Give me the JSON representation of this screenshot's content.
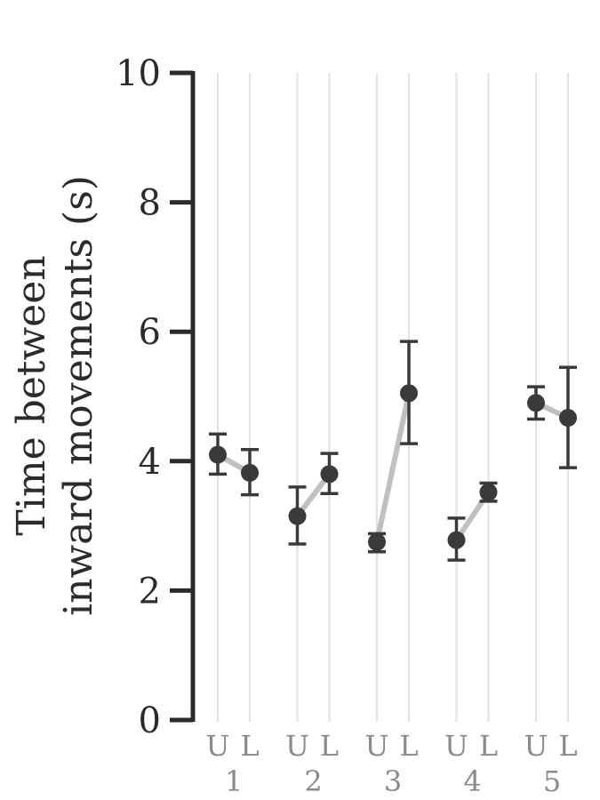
{
  "chart_data": {
    "type": "scatter",
    "ylabel_lines": [
      "Time between",
      "inward movements (s)"
    ],
    "ylim": [
      0,
      10
    ],
    "yticks": [
      "0",
      "2",
      "4",
      "6",
      "8",
      "10"
    ],
    "grid": "vertical lines at each condition",
    "groups": [
      {
        "label": "1",
        "points": [
          {
            "label": "U",
            "y": 4.1,
            "low": 3.8,
            "high": 4.42
          },
          {
            "label": "L",
            "y": 3.82,
            "low": 3.48,
            "high": 4.18
          }
        ]
      },
      {
        "label": "2",
        "points": [
          {
            "label": "U",
            "y": 3.15,
            "low": 2.72,
            "high": 3.6
          },
          {
            "label": "L",
            "y": 3.8,
            "low": 3.5,
            "high": 4.12
          }
        ]
      },
      {
        "label": "3",
        "points": [
          {
            "label": "U",
            "y": 2.75,
            "low": 2.6,
            "high": 2.88
          },
          {
            "label": "L",
            "y": 5.05,
            "low": 4.27,
            "high": 5.85
          }
        ]
      },
      {
        "label": "4",
        "points": [
          {
            "label": "U",
            "y": 2.78,
            "low": 2.47,
            "high": 3.12
          },
          {
            "label": "L",
            "y": 3.52,
            "low": 3.38,
            "high": 3.66
          }
        ]
      },
      {
        "label": "5",
        "points": [
          {
            "label": "U",
            "y": 4.9,
            "low": 4.65,
            "high": 5.15
          },
          {
            "label": "L",
            "y": 4.67,
            "low": 3.9,
            "high": 5.45
          }
        ]
      }
    ],
    "colors": {
      "axis": "#2b2b2b",
      "marker": "#3a3a3a",
      "connector": "#c0c0c0",
      "grid": "#e2e2e2",
      "xtick": "#8a8a8a"
    }
  }
}
